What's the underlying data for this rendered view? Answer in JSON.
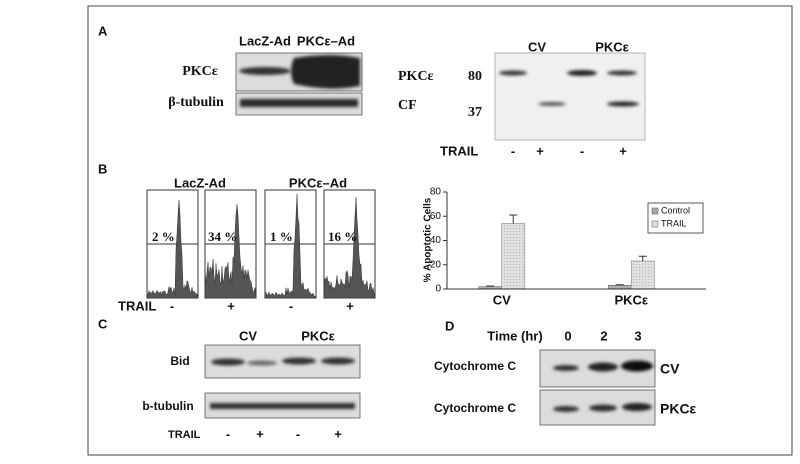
{
  "panel_labels": [
    "A",
    "B",
    "C",
    "D"
  ],
  "panel_a": {
    "left": {
      "columns": [
        "LacZ-Ad",
        "PKCε–Ad"
      ],
      "rows": [
        "PKCε",
        "β-tubulin"
      ]
    },
    "right": {
      "columns": [
        "CV",
        "PKCε"
      ],
      "rows": [
        "PKCε",
        "CF"
      ],
      "markers": [
        80,
        37
      ],
      "treatment_label": "TRAIL",
      "treatment": [
        "-",
        "+",
        "-",
        "+"
      ]
    }
  },
  "panel_b": {
    "columns": [
      "LacZ-Ad",
      "PKCε–Ad"
    ],
    "percentages": [
      "2 %",
      "34 %",
      "1 %",
      "16 %"
    ],
    "treatment_label": "TRAIL",
    "treatment": [
      "-",
      "+",
      "-",
      "+"
    ]
  },
  "chart_data": {
    "type": "bar",
    "y_label": "% Apoptotic Cells",
    "categories": [
      "CV",
      "PKCε"
    ],
    "series": [
      {
        "name": "Control",
        "color": "#a8a8a8",
        "values": [
          2,
          3
        ],
        "errors": [
          0.5,
          0.5
        ]
      },
      {
        "name": "TRAIL",
        "color": "#dedede",
        "values": [
          54,
          23
        ],
        "errors": [
          7,
          4
        ]
      }
    ],
    "ylim": [
      0,
      80
    ],
    "yticks": [
      0,
      20,
      40,
      60,
      80
    ]
  },
  "panel_c": {
    "columns": [
      "CV",
      "PKCε"
    ],
    "rows": [
      "Bid",
      "b-tubulin"
    ],
    "treatment_label": "TRAIL",
    "treatment": [
      "-",
      "+",
      "-",
      "+"
    ]
  },
  "panel_d": {
    "time_label": "Time (hr)",
    "times": [
      0,
      2,
      3
    ],
    "rows": [
      "Cytochrome C",
      "Cytochrome C"
    ],
    "conditions": [
      "CV",
      "PKCε"
    ]
  }
}
